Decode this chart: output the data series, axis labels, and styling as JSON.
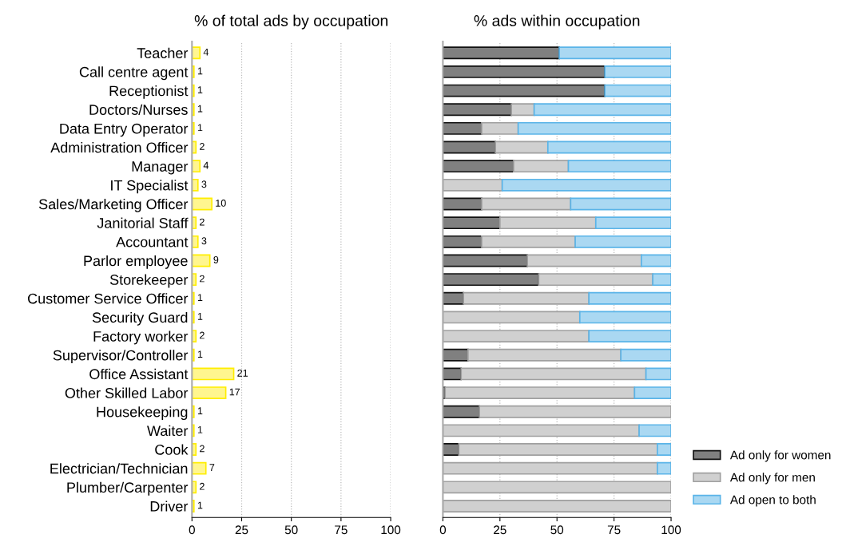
{
  "chart_data": [
    {
      "type": "bar",
      "orientation": "horizontal",
      "title": "% of total ads by occupation",
      "categories": [
        "Teacher",
        "Call centre agent",
        "Receptionist",
        "Doctors/Nurses",
        "Data Entry Operator",
        "Administration Officer",
        "Manager",
        "IT Specialist",
        "Sales/Marketing Officer",
        "Janitorial Staff",
        "Accountant",
        "Parlor employee",
        "Storekeeper",
        "Customer Service Officer",
        "Security Guard",
        "Factory worker",
        "Supervisor/Controller",
        "Office Assistant",
        "Other Skilled Labor",
        "Housekeeping",
        "Waiter",
        "Cook",
        "Electrician/Technician",
        "Plumber/Carpenter",
        "Driver"
      ],
      "values": [
        4,
        1,
        1,
        1,
        1,
        2,
        4,
        3,
        10,
        2,
        3,
        9,
        2,
        1,
        1,
        2,
        1,
        21,
        17,
        1,
        1,
        2,
        7,
        2,
        1
      ],
      "color": "#fff68f",
      "xlim": [
        0,
        100
      ],
      "xticks": [
        0,
        25,
        50,
        75,
        100
      ],
      "grid": "x",
      "data_labels": true
    },
    {
      "type": "bar",
      "orientation": "horizontal",
      "stacked": true,
      "title": "% ads within occupation",
      "categories": [
        null,
        null,
        null,
        null,
        null,
        null,
        null,
        null,
        null,
        null,
        null,
        null,
        null,
        null,
        null,
        null,
        null,
        null,
        null,
        null,
        null,
        null,
        null,
        null,
        null
      ],
      "series": [
        {
          "name": "Ad only for women",
          "color": "#808080",
          "values": [
            51,
            71,
            71,
            30,
            17,
            23,
            31,
            0,
            17,
            25,
            17,
            37,
            42,
            9,
            0,
            0,
            11,
            8,
            1,
            16,
            0,
            7,
            0,
            0,
            0
          ]
        },
        {
          "name": "Ad only for men",
          "color": "#d0d0d0",
          "values": [
            0,
            0,
            0,
            10,
            16,
            23,
            24,
            26,
            39,
            42,
            41,
            50,
            50,
            55,
            60,
            64,
            67,
            81,
            83,
            84,
            86,
            87,
            94,
            100,
            100
          ]
        },
        {
          "name": "Ad open to both",
          "color": "#aad8f2",
          "values": [
            49,
            29,
            29,
            60,
            67,
            54,
            45,
            74,
            44,
            33,
            42,
            13,
            8,
            36,
            40,
            36,
            22,
            11,
            16,
            0,
            14,
            6,
            6,
            0,
            0
          ]
        }
      ],
      "xlim": [
        0,
        100
      ],
      "xticks": [
        0,
        25,
        50,
        75,
        100
      ],
      "grid": "x",
      "legend": "bottom right"
    }
  ]
}
